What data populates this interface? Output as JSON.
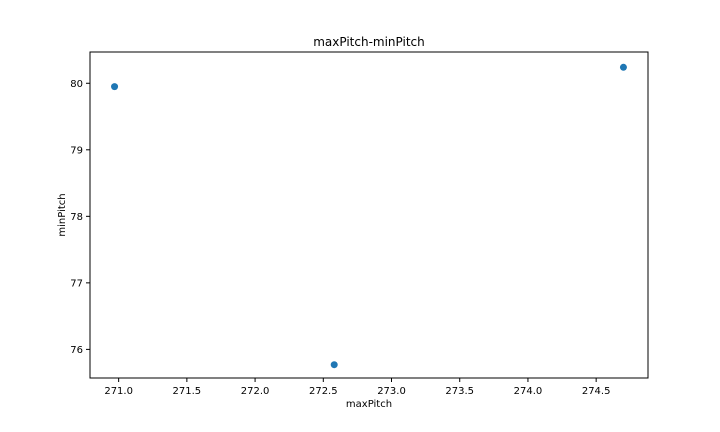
{
  "chart_data": {
    "type": "scatter",
    "title": "maxPitch-minPitch",
    "xlabel": "maxPitch",
    "ylabel": "minPitch",
    "xlim": [
      270.79,
      274.88
    ],
    "ylim": [
      75.57,
      80.47
    ],
    "xticks": [
      271.0,
      271.5,
      272.0,
      272.5,
      273.0,
      273.5,
      274.0,
      274.5
    ],
    "xtick_labels": [
      "271.0",
      "271.5",
      "272.0",
      "272.5",
      "273.0",
      "273.5",
      "274.0",
      "274.5"
    ],
    "yticks": [
      76,
      77,
      78,
      79,
      80
    ],
    "ytick_labels": [
      "76",
      "77",
      "78",
      "79",
      "80"
    ],
    "grid": false,
    "marker_color": "#1f77b4",
    "points": [
      {
        "x": 270.97,
        "y": 79.95
      },
      {
        "x": 272.58,
        "y": 75.77
      },
      {
        "x": 274.7,
        "y": 80.24
      }
    ]
  }
}
